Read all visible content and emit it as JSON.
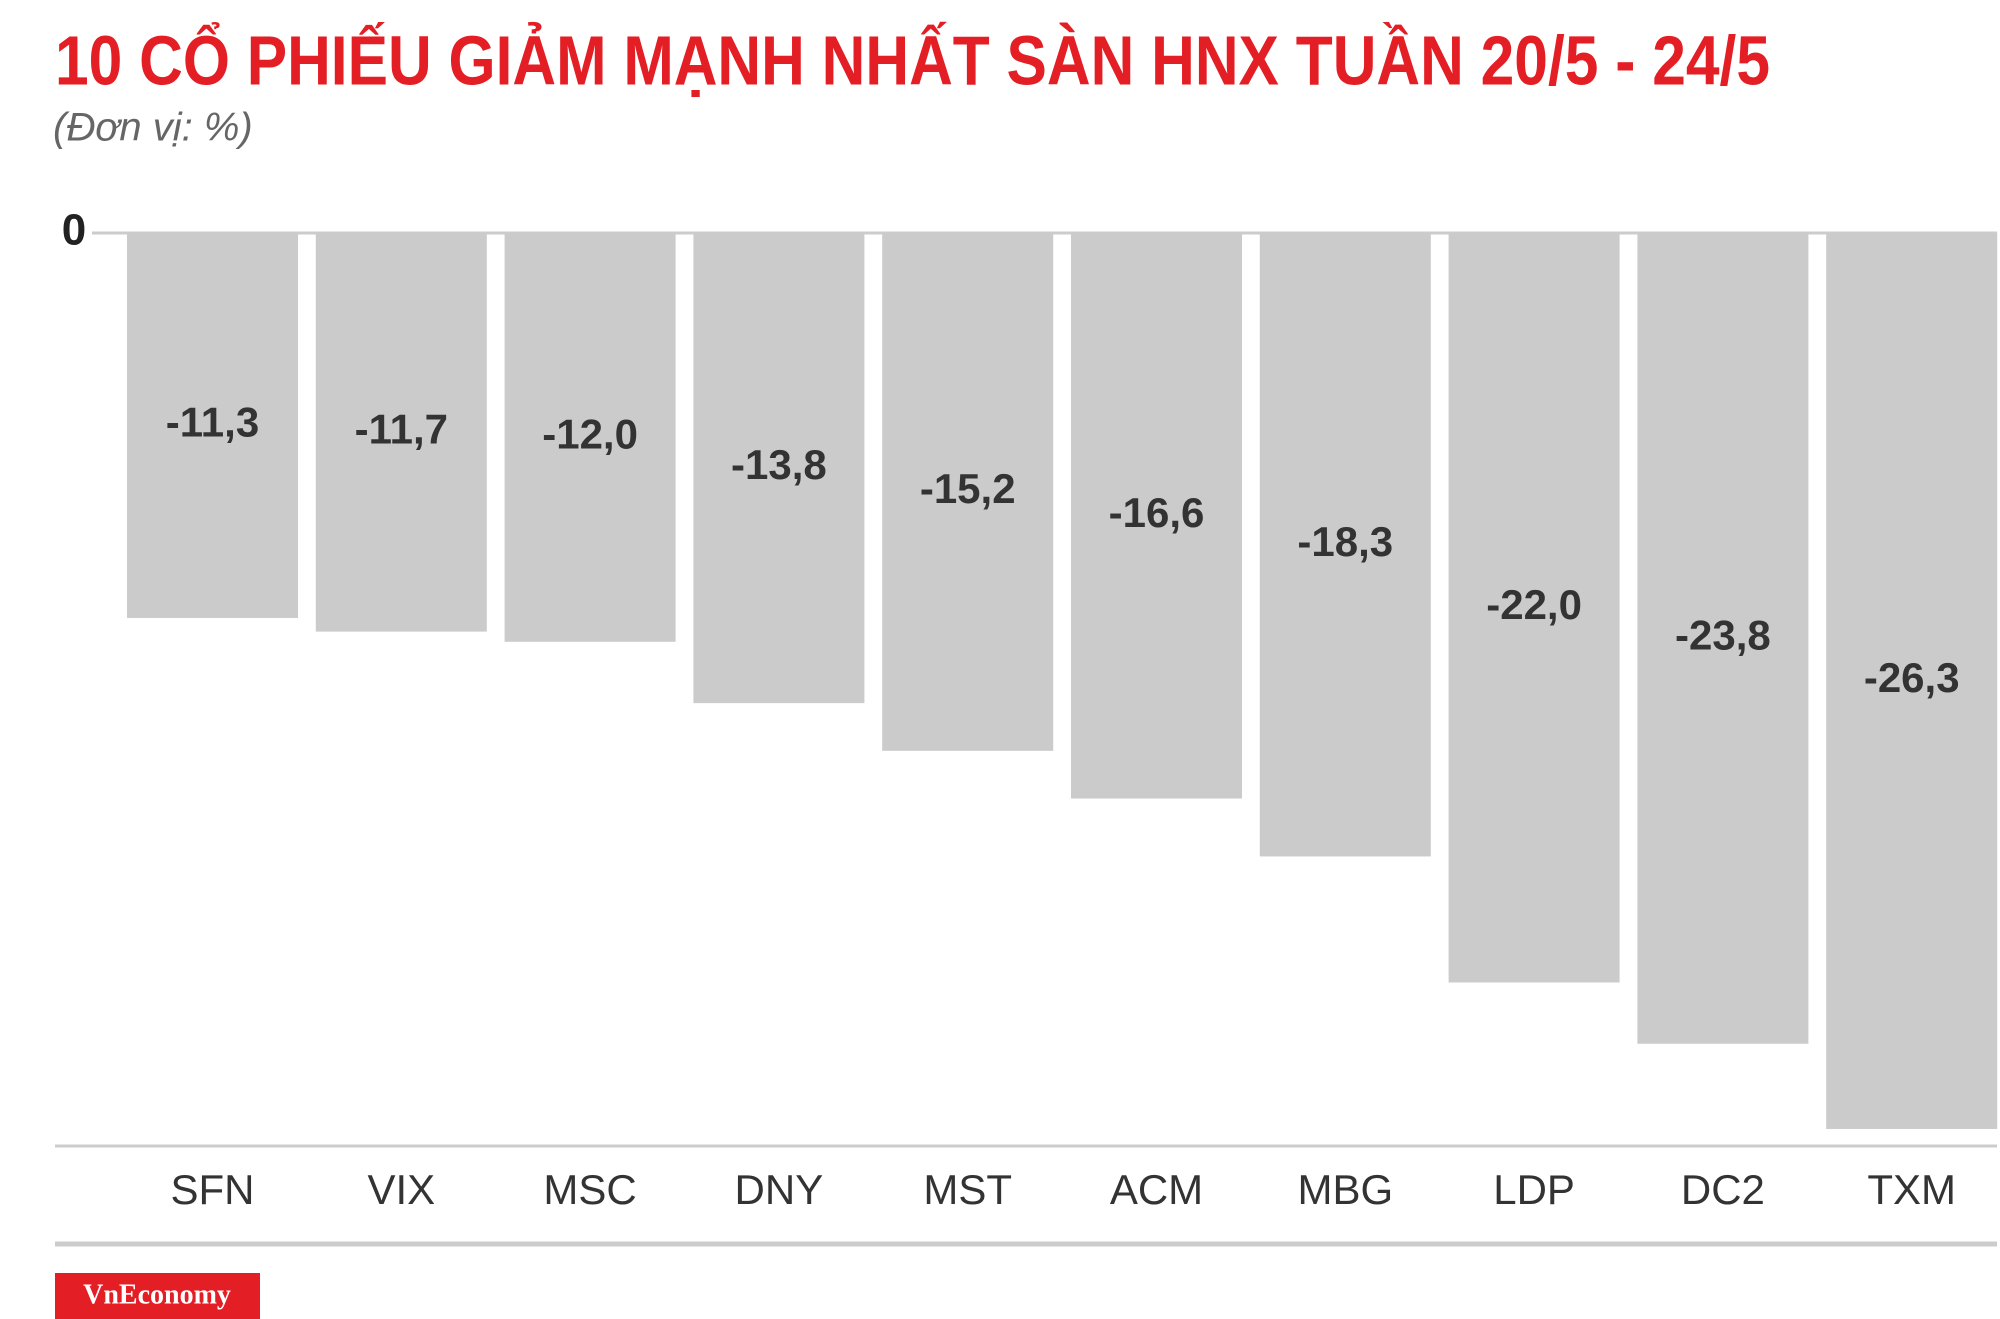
{
  "chart_data": {
    "type": "bar",
    "title": "10 CỔ PHIẾU GIẢM MẠNH NHẤT SÀN HNX TUẦN 20/5 - 24/5",
    "subtitle": "(Đơn vị: %)",
    "categories": [
      "SFN",
      "VIX",
      "MSC",
      "DNY",
      "MST",
      "ACM",
      "MBG",
      "LDP",
      "DC2",
      "TXM"
    ],
    "values": [
      -11.3,
      -11.7,
      -12.0,
      -13.8,
      -15.2,
      -16.6,
      -18.3,
      -22.0,
      -23.8,
      -26.3
    ],
    "value_labels": [
      "-11,3",
      "-11,7",
      "-12,0",
      "-13,8",
      "-15,2",
      "-16,6",
      "-18,3",
      "-22,0",
      "-23,8",
      "-26,3"
    ],
    "color": "#cccbcc",
    "ylim": [
      -26.8,
      0
    ],
    "yticks": [
      0
    ],
    "source": "VnEconomy"
  }
}
